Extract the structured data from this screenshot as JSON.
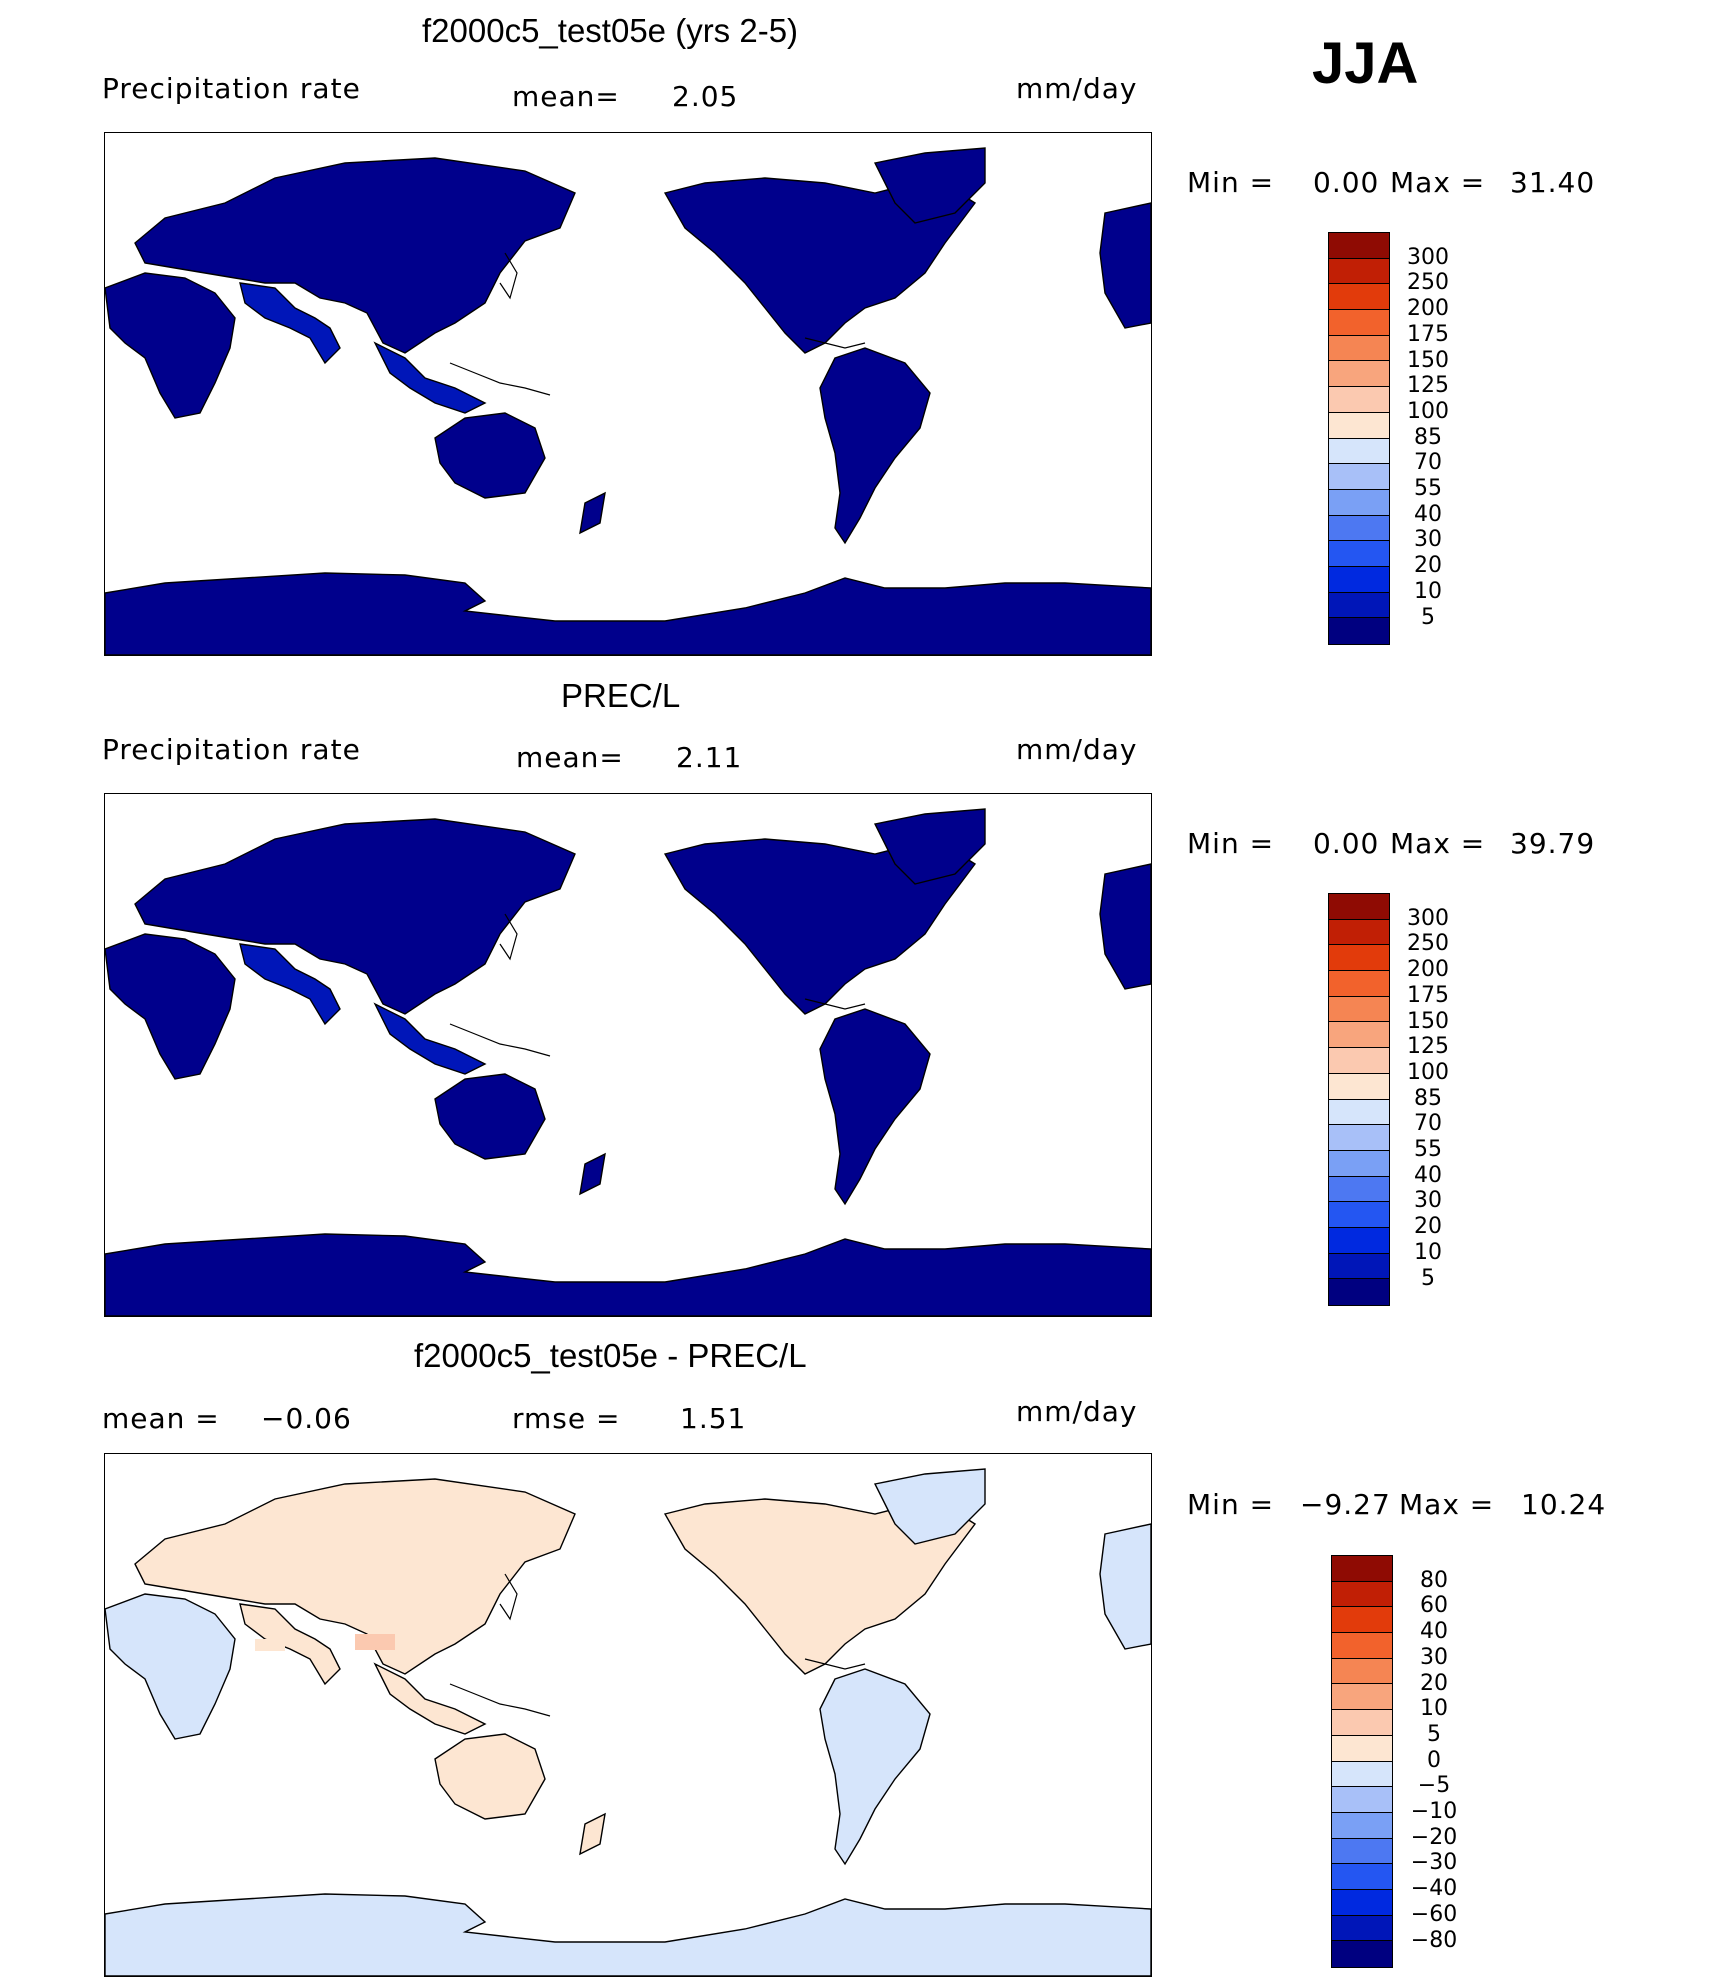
{
  "season": "JJA",
  "colors": {
    "abs": [
      "#000080",
      "#0016b8",
      "#0029e0",
      "#2456f2",
      "#4d78f2",
      "#7aa0f5",
      "#a8c0f8",
      "#d6e5fb",
      "#fde6d2",
      "#fbc9b0",
      "#f8a57d",
      "#f58553",
      "#f2622c",
      "#e23b0b",
      "#c11f05",
      "#8f0b03"
    ],
    "diff": [
      "#000080",
      "#0016b8",
      "#0029e0",
      "#2456f2",
      "#4d78f2",
      "#7aa0f5",
      "#a8c0f8",
      "#d6e5fb",
      "#fde6d2",
      "#fbc9b0",
      "#f8a57d",
      "#f58553",
      "#f2622c",
      "#e23b0b",
      "#c11f05",
      "#8f0b03"
    ],
    "land_abs": "#00008c",
    "diff_land_pos": "#fde6d2",
    "diff_land_neg": "#d6e5fb"
  },
  "panels": [
    {
      "title": "f2000c5_test05e (yrs 2-5)",
      "left_label": "Precipitation  rate",
      "mean_label": "mean=",
      "mean_value": "2.05",
      "units": "mm/day",
      "min_label": "Min  =",
      "min_value": "0.00",
      "max_label": "Max  =",
      "max_value": "31.40",
      "scale": "abs",
      "ticks": [
        "300",
        "250",
        "200",
        "175",
        "150",
        "125",
        "100",
        "85",
        "70",
        "55",
        "40",
        "30",
        "20",
        "10",
        "5"
      ]
    },
    {
      "title": "PREC/L",
      "left_label": "Precipitation  rate",
      "mean_label": "mean=",
      "mean_value": "2.11",
      "units": "mm/day",
      "min_label": "Min  =",
      "min_value": "0.00",
      "max_label": "Max  =",
      "max_value": "39.79",
      "scale": "abs",
      "ticks": [
        "300",
        "250",
        "200",
        "175",
        "150",
        "125",
        "100",
        "85",
        "70",
        "55",
        "40",
        "30",
        "20",
        "10",
        "5"
      ]
    },
    {
      "title": "f2000c5_test05e - PREC/L",
      "left_label": "mean  =",
      "left_value": "−0.06",
      "rmse_label": "rmse  =",
      "rmse_value": "1.51",
      "units": "mm/day",
      "min_label": "Min  =",
      "min_value": "−9.27",
      "max_label": "Max  =",
      "max_value": "10.24",
      "scale": "diff",
      "ticks": [
        "80",
        "60",
        "40",
        "30",
        "20",
        "10",
        "5",
        "0",
        "−5",
        "−10",
        "−20",
        "−30",
        "−40",
        "−60",
        "−80"
      ]
    }
  ]
}
